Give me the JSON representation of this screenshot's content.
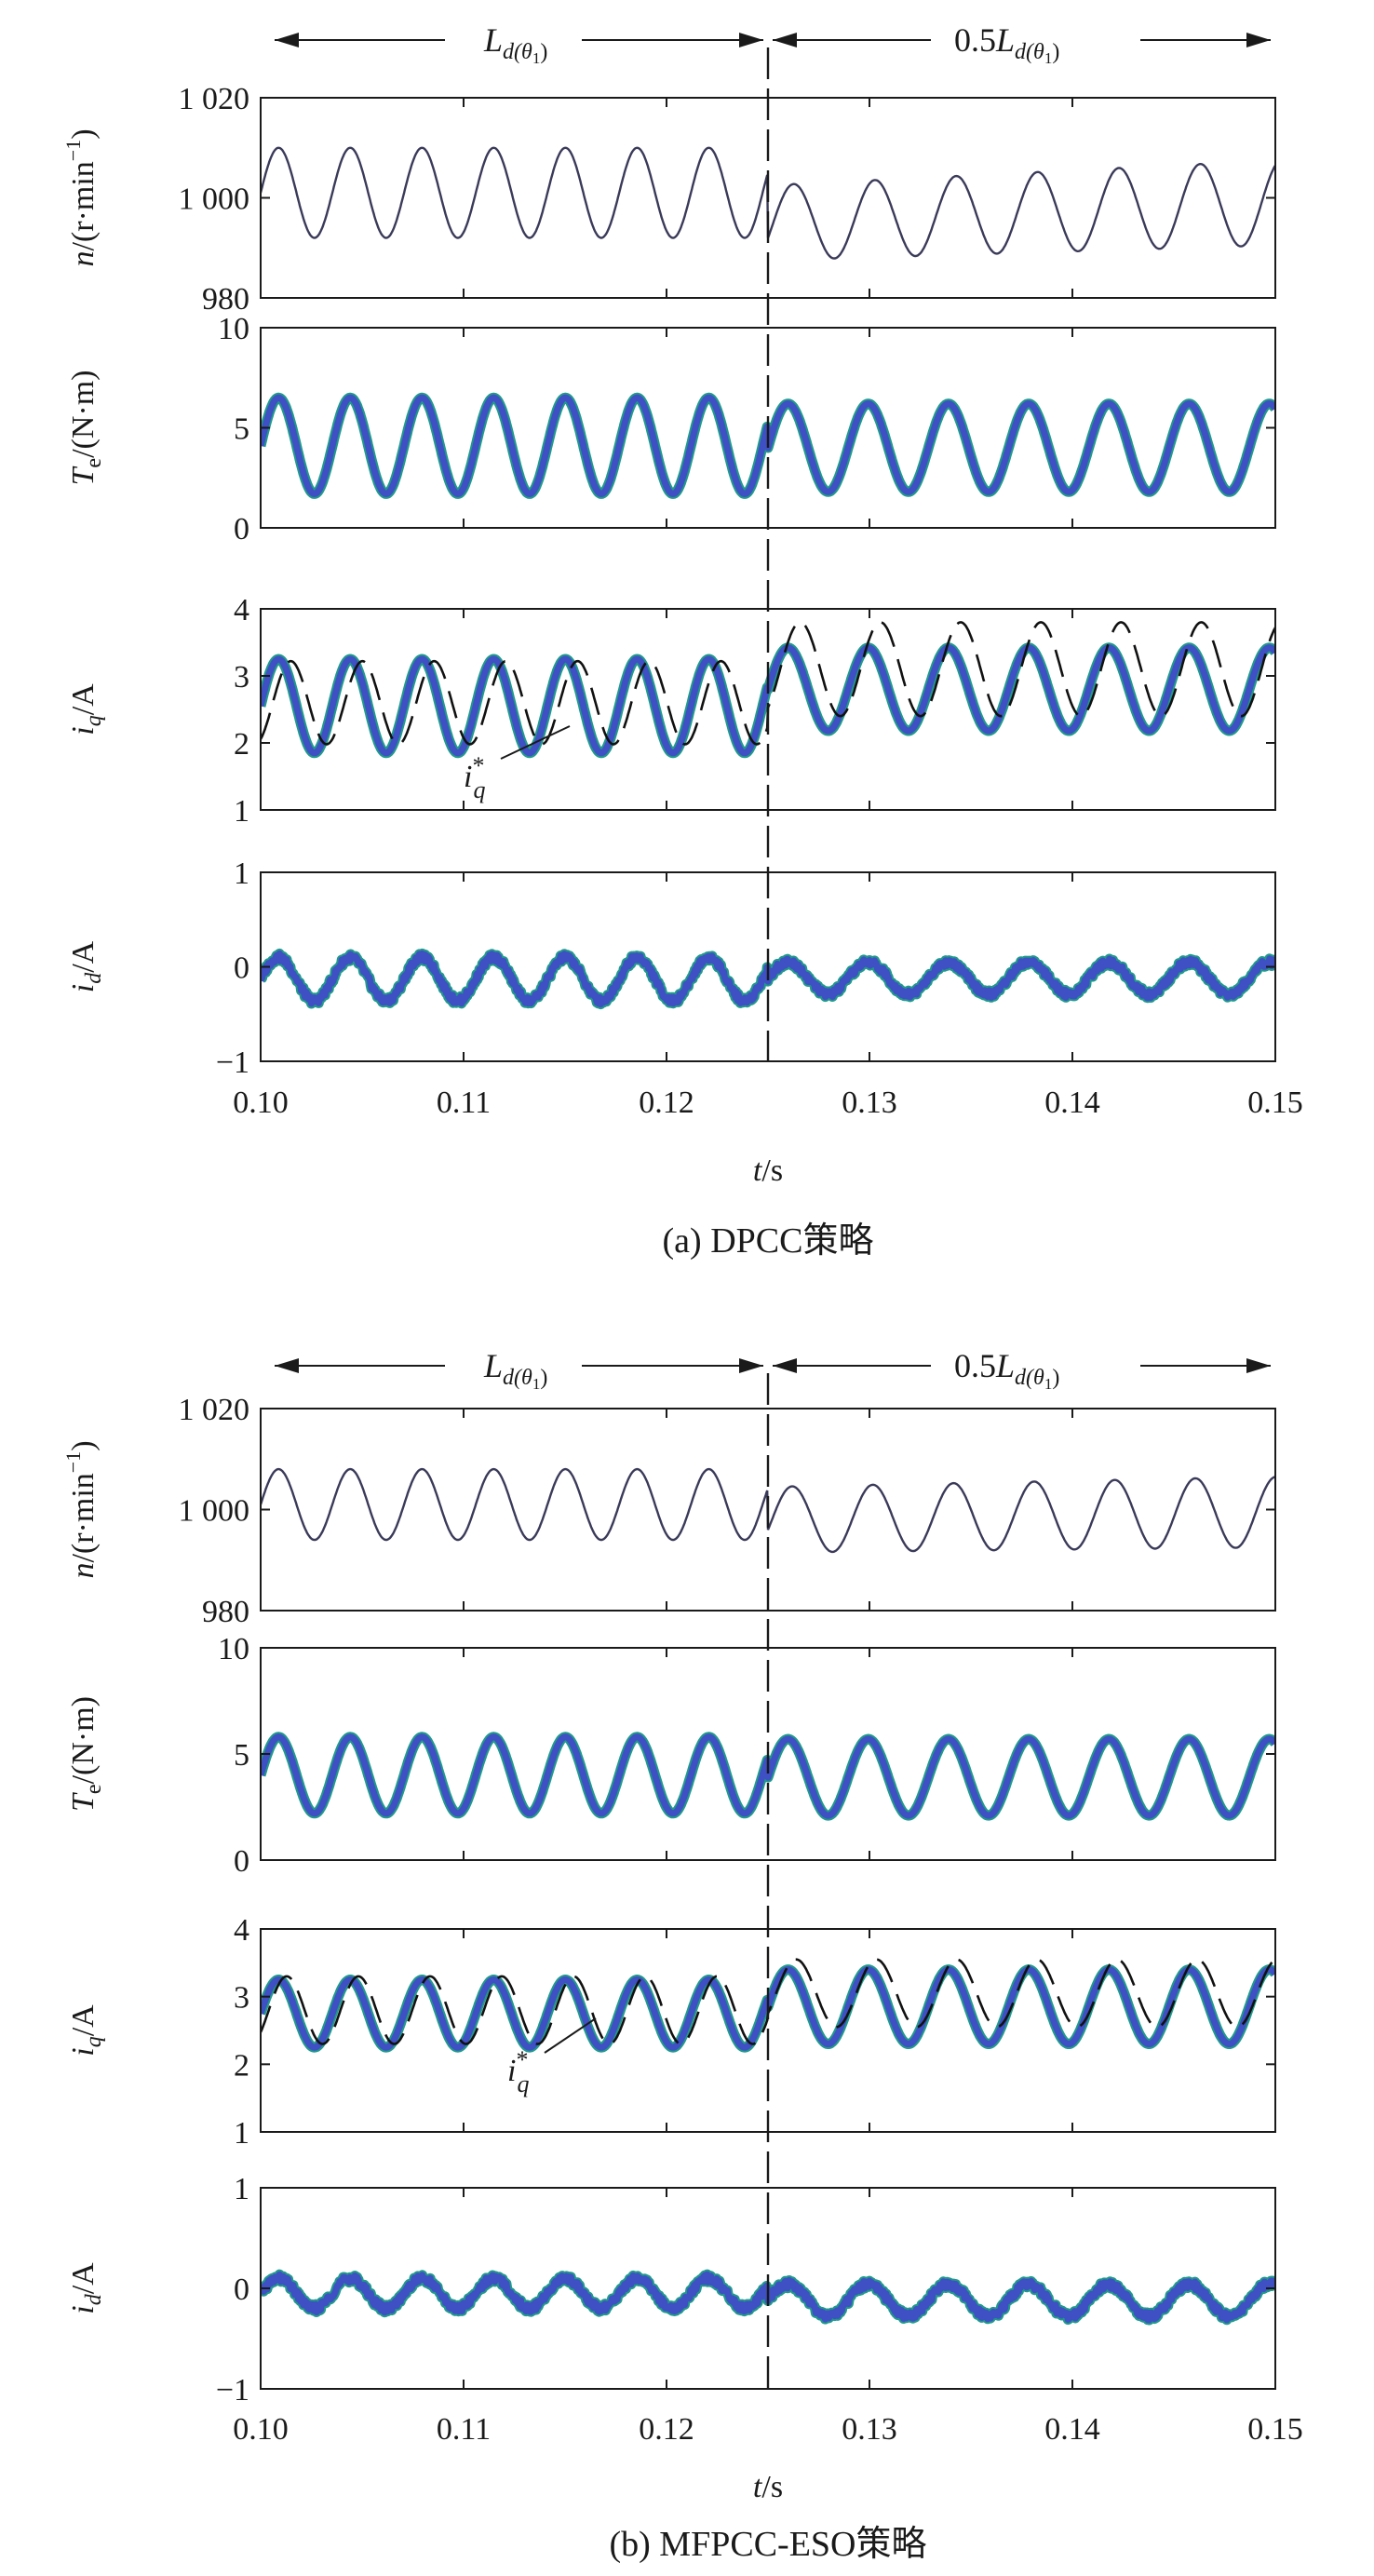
{
  "colors": {
    "measured": "#3f4fc4",
    "measured_edge": "#1f9a8a",
    "reference": "#111111",
    "speed": "#3a3a5a",
    "axes": "#1a1a1a"
  },
  "arrows": {
    "left_label": {
      "base": "L",
      "sub": "d(θ",
      "subsub": "1",
      "close": ")"
    },
    "right_label": {
      "prefix": "0.5",
      "base": "L",
      "sub": "d(θ",
      "subsub": "1",
      "close": ")"
    }
  },
  "xlabel": {
    "var": "t",
    "unit": "/s"
  },
  "switch_time": 0.125,
  "chart_data": [
    {
      "panel": "a",
      "caption": "(a) DPCC策略",
      "type": "line",
      "xlim": [
        0.1,
        0.15
      ],
      "x_ticks": [
        "0.10",
        "0.11",
        "0.12",
        "0.13",
        "0.14",
        "0.15"
      ],
      "switch_time": 0.125,
      "subplots": [
        {
          "ylabel": {
            "var": "n",
            "sub": "",
            "unit": "/(r·min",
            "sup": "−1",
            "close": ")"
          },
          "ylim": [
            980,
            1020
          ],
          "y_ticks": [
            "980",
            "1 000",
            "1 020"
          ],
          "y_tick_values": [
            980,
            1000,
            1020
          ],
          "series": [
            {
              "role": "speed",
              "freq_before": 283,
              "freq_after": 253,
              "before": {
                "mean": 1001,
                "amp": 9
              },
              "after": {
                "mean_start": 995,
                "mean_end": 999,
                "amp_start": 7.5,
                "amp_end": 8.5,
                "start_value": 992
              }
            }
          ]
        },
        {
          "ylabel": {
            "var": "T",
            "sub": "e",
            "unit": "/(N·m",
            "sup": "",
            "close": ")"
          },
          "ylim": [
            0,
            10
          ],
          "y_ticks": [
            "0",
            "5",
            "10"
          ],
          "y_tick_values": [
            0,
            5,
            10
          ],
          "series": [
            {
              "role": "measured",
              "thick": true,
              "freq_before": 283,
              "freq_after": 253,
              "before": {
                "mean": 4.1,
                "amp": 2.4
              },
              "after": {
                "mean": 4.0,
                "amp": 2.2
              }
            }
          ]
        },
        {
          "ylabel": {
            "var": "i",
            "sub": "q",
            "unit": "/A",
            "sup": "",
            "close": ""
          },
          "ylim": [
            1,
            4
          ],
          "y_ticks": [
            "1",
            "2",
            "3",
            "4"
          ],
          "y_tick_values": [
            1,
            2,
            3,
            4
          ],
          "annotation": {
            "var": "i",
            "sub": "q",
            "sup": "*"
          },
          "series": [
            {
              "role": "measured",
              "thick": true,
              "freq_before": 283,
              "freq_after": 253,
              "before": {
                "mean": 2.55,
                "amp": 0.7
              },
              "after": {
                "mean": 2.8,
                "amp": 0.62
              }
            },
            {
              "role": "reference",
              "dashed": true,
              "freq_before": 283,
              "freq_after": 253,
              "before": {
                "mean": 2.6,
                "amp": 0.62,
                "lag": 0.0006
              },
              "after": {
                "mean": 3.1,
                "amp": 0.7,
                "lag": 0.0006
              }
            }
          ]
        },
        {
          "ylabel": {
            "var": "i",
            "sub": "d",
            "unit": "/A",
            "sup": "",
            "close": ""
          },
          "ylim": [
            -1,
            1
          ],
          "y_ticks": [
            "−1",
            "0",
            "1"
          ],
          "y_tick_values": [
            -1,
            0,
            1
          ],
          "series": [
            {
              "role": "measured",
              "thick": true,
              "noisy": true,
              "freq_before": 283,
              "freq_after": 253,
              "before": {
                "mean": -0.13,
                "amp": 0.23
              },
              "after": {
                "mean": -0.12,
                "amp": 0.17
              }
            }
          ]
        }
      ]
    },
    {
      "panel": "b",
      "caption": "(b) MFPCC-ESO策略",
      "type": "line",
      "xlim": [
        0.1,
        0.15
      ],
      "x_ticks": [
        "0.10",
        "0.11",
        "0.12",
        "0.13",
        "0.14",
        "0.15"
      ],
      "switch_time": 0.125,
      "subplots": [
        {
          "ylabel": {
            "var": "n",
            "sub": "",
            "unit": "/(r·min",
            "sup": "−1",
            "close": ")"
          },
          "ylim": [
            980,
            1020
          ],
          "y_ticks": [
            "980",
            "1 000",
            "1 020"
          ],
          "y_tick_values": [
            980,
            1000,
            1020
          ],
          "series": [
            {
              "role": "speed",
              "freq_before": 283,
              "freq_after": 253,
              "before": {
                "mean": 1001,
                "amp": 7
              },
              "after": {
                "mean_start": 998,
                "mean_end": 999.5,
                "amp_start": 6.5,
                "amp_end": 7,
                "start_value": 996
              }
            }
          ]
        },
        {
          "ylabel": {
            "var": "T",
            "sub": "e",
            "unit": "/(N·m",
            "sup": "",
            "close": ")"
          },
          "ylim": [
            0,
            10
          ],
          "y_ticks": [
            "0",
            "5",
            "10"
          ],
          "y_tick_values": [
            0,
            5,
            10
          ],
          "series": [
            {
              "role": "measured",
              "thick": true,
              "freq_before": 283,
              "freq_after": 253,
              "before": {
                "mean": 4.0,
                "amp": 1.8
              },
              "after": {
                "mean": 3.9,
                "amp": 1.8
              }
            }
          ]
        },
        {
          "ylabel": {
            "var": "i",
            "sub": "q",
            "unit": "/A",
            "sup": "",
            "close": ""
          },
          "ylim": [
            1,
            4
          ],
          "y_ticks": [
            "1",
            "2",
            "3",
            "4"
          ],
          "y_tick_values": [
            1,
            2,
            3,
            4
          ],
          "annotation": {
            "var": "i",
            "sub": "q",
            "sup": "*"
          },
          "series": [
            {
              "role": "measured",
              "thick": true,
              "freq_before": 283,
              "freq_after": 253,
              "before": {
                "mean": 2.75,
                "amp": 0.5
              },
              "after": {
                "mean": 2.85,
                "amp": 0.55
              }
            },
            {
              "role": "reference",
              "dashed": true,
              "freq_before": 283,
              "freq_after": 253,
              "before": {
                "mean": 2.8,
                "amp": 0.5,
                "lag": 0.0004
              },
              "after": {
                "mean": 3.05,
                "amp": 0.5,
                "lag": 0.0004
              }
            }
          ]
        },
        {
          "ylabel": {
            "var": "i",
            "sub": "d",
            "unit": "/A",
            "sup": "",
            "close": ""
          },
          "ylim": [
            -1,
            1
          ],
          "y_ticks": [
            "−1",
            "0",
            "1"
          ],
          "y_tick_values": [
            -1,
            0,
            1
          ],
          "series": [
            {
              "role": "measured",
              "thick": true,
              "noisy": true,
              "freq_before": 283,
              "freq_after": 253,
              "before": {
                "mean": -0.05,
                "amp": 0.15
              },
              "after": {
                "mean": -0.12,
                "amp": 0.16
              }
            }
          ]
        }
      ]
    }
  ]
}
